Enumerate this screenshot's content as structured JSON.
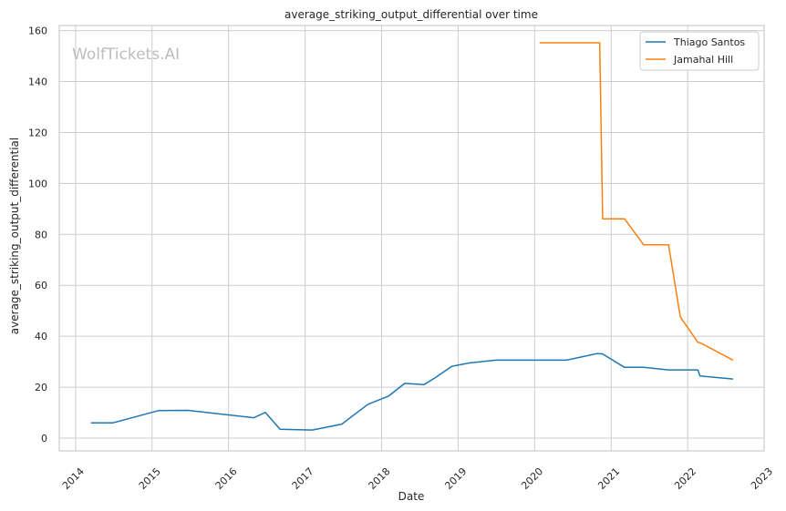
{
  "watermark": "WolfTickets.AI",
  "chart_data": {
    "type": "line",
    "title": "average_striking_output_differential over time",
    "xlabel": "Date",
    "ylabel": "average_striking_output_differential",
    "x_axis": "date",
    "xlim": [
      "2013-10-15",
      "2023-01-01"
    ],
    "ylim": [
      -5,
      162
    ],
    "x_ticks": [
      "2014",
      "2015",
      "2016",
      "2017",
      "2018",
      "2019",
      "2020",
      "2021",
      "2022",
      "2023"
    ],
    "y_ticks": [
      0,
      20,
      40,
      60,
      80,
      100,
      120,
      140,
      160
    ],
    "grid": true,
    "legend_position": "top-right",
    "series": [
      {
        "name": "Thiago Santos",
        "color": "#1f77b4",
        "points": [
          [
            "2014-03-15",
            6.0
          ],
          [
            "2014-06-28",
            6.0
          ],
          [
            "2015-01-31",
            10.8
          ],
          [
            "2015-06-20",
            10.9
          ],
          [
            "2016-05-01",
            8.0
          ],
          [
            "2016-06-25",
            10.1
          ],
          [
            "2016-09-03",
            3.5
          ],
          [
            "2017-02-04",
            3.2
          ],
          [
            "2017-06-25",
            5.5
          ],
          [
            "2017-10-28",
            13.3
          ],
          [
            "2018-02-03",
            16.5
          ],
          [
            "2018-04-21",
            21.5
          ],
          [
            "2018-07-22",
            21.0
          ],
          [
            "2018-09-15",
            23.8
          ],
          [
            "2018-12-01",
            28.2
          ],
          [
            "2019-02-23",
            29.5
          ],
          [
            "2019-06-29",
            30.6
          ],
          [
            "2020-06-01",
            30.6
          ],
          [
            "2020-10-25",
            33.2
          ],
          [
            "2020-11-20",
            33.1
          ],
          [
            "2021-03-06",
            27.8
          ],
          [
            "2021-06-05",
            27.8
          ],
          [
            "2021-10-02",
            26.8
          ],
          [
            "2022-02-19",
            26.8
          ],
          [
            "2022-03-01",
            24.4
          ],
          [
            "2022-08-06",
            23.2
          ]
        ]
      },
      {
        "name": "Jamahal Hill",
        "color": "#ff7f0e",
        "points": [
          [
            "2020-01-25",
            155.2
          ],
          [
            "2020-11-07",
            155.2
          ],
          [
            "2020-11-21",
            86.1
          ],
          [
            "2021-03-06",
            86.1
          ],
          [
            "2021-06-05",
            75.9
          ],
          [
            "2021-10-02",
            75.9
          ],
          [
            "2021-11-27",
            47.6
          ],
          [
            "2022-02-19",
            37.6
          ],
          [
            "2022-03-01",
            37.5
          ],
          [
            "2022-08-06",
            30.6
          ]
        ]
      }
    ]
  }
}
